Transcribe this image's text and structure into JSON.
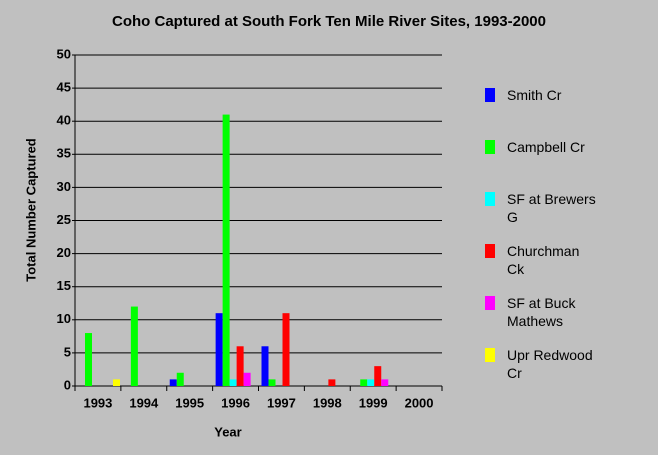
{
  "chart_data": {
    "type": "bar",
    "title": "Coho Captured at South Fork Ten Mile River Sites, 1993-2000",
    "x_label": "Year",
    "y_label": "Total Number Captured",
    "categories": [
      "1993",
      "1994",
      "1995",
      "1996",
      "1997",
      "1998",
      "1999",
      "2000"
    ],
    "series": [
      {
        "name": "Smith Cr",
        "color": "#0000ff",
        "values": [
          0,
          0,
          1,
          11,
          6,
          0,
          0,
          0
        ]
      },
      {
        "name": "Campbell Cr",
        "color": "#00ff00",
        "values": [
          8,
          12,
          2,
          41,
          1,
          0,
          1,
          0
        ]
      },
      {
        "name": "SF at Brewers G",
        "color": "#00ffff",
        "values": [
          0,
          0,
          0,
          1,
          0,
          0,
          1,
          0
        ]
      },
      {
        "name": "Churchman Ck",
        "color": "#ff0000",
        "values": [
          0,
          0,
          0,
          6,
          11,
          1,
          3,
          0
        ]
      },
      {
        "name": "SF at Buck Mathews",
        "color": "#ff00ff",
        "values": [
          0,
          0,
          0,
          2,
          0,
          0,
          1,
          0
        ]
      },
      {
        "name": "Upr Redwood Cr",
        "color": "#ffff00",
        "values": [
          1,
          0,
          0,
          0,
          0,
          0,
          0,
          0
        ]
      }
    ],
    "ylim": [
      0,
      50
    ],
    "yticks": [
      0,
      5,
      10,
      15,
      20,
      25,
      30,
      35,
      40,
      45,
      50
    ],
    "grid": true
  }
}
